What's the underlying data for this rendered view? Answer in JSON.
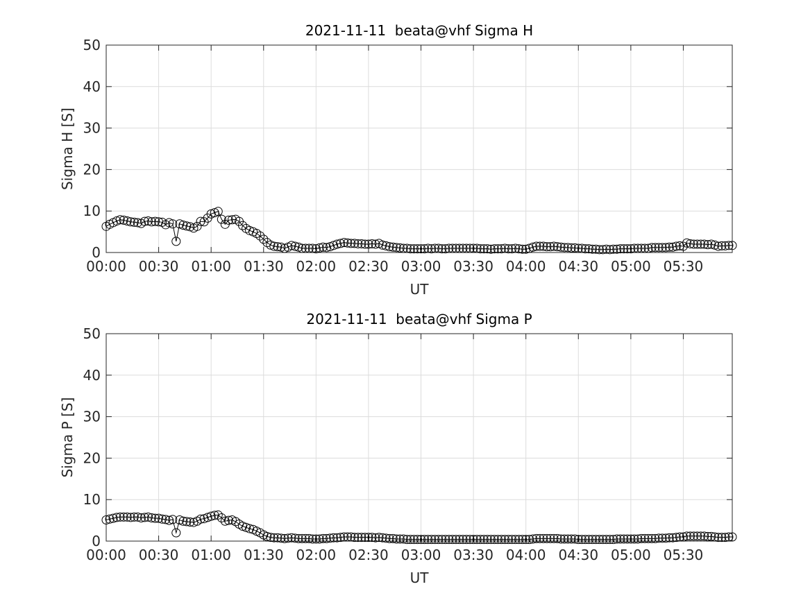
{
  "chart_data": [
    {
      "type": "line",
      "title": "2021-11-11  beata@vhf Sigma H",
      "xlabel": "UT",
      "ylabel": "Sigma H [S]",
      "color": "#000000",
      "grid": true,
      "xlim": [
        "00:00",
        "05:58"
      ],
      "xticks": [
        "00:00",
        "00:30",
        "01:00",
        "01:30",
        "02:00",
        "02:30",
        "03:00",
        "03:30",
        "04:00",
        "04:30",
        "05:00",
        "05:30"
      ],
      "ylim": [
        0,
        50
      ],
      "yticks": [
        0,
        10,
        20,
        30,
        40,
        50
      ],
      "x": [
        "00:00",
        "00:02",
        "00:04",
        "00:06",
        "00:08",
        "00:10",
        "00:12",
        "00:14",
        "00:16",
        "00:18",
        "00:20",
        "00:22",
        "00:24",
        "00:26",
        "00:28",
        "00:30",
        "00:32",
        "00:34",
        "00:36",
        "00:38",
        "00:40",
        "00:42",
        "00:44",
        "00:46",
        "00:48",
        "00:50",
        "00:52",
        "00:54",
        "00:56",
        "00:58",
        "01:00",
        "01:02",
        "01:04",
        "01:06",
        "01:08",
        "01:10",
        "01:12",
        "01:14",
        "01:16",
        "01:18",
        "01:20",
        "01:22",
        "01:24",
        "01:26",
        "01:28",
        "01:30",
        "01:32",
        "01:34",
        "01:36",
        "01:38",
        "01:40",
        "01:42",
        "01:44",
        "01:46",
        "01:48",
        "01:50",
        "01:52",
        "01:54",
        "01:56",
        "01:58",
        "02:00",
        "02:02",
        "02:04",
        "02:06",
        "02:08",
        "02:10",
        "02:12",
        "02:14",
        "02:16",
        "02:18",
        "02:20",
        "02:22",
        "02:24",
        "02:26",
        "02:28",
        "02:30",
        "02:32",
        "02:34",
        "02:36",
        "02:38",
        "02:40",
        "02:42",
        "02:44",
        "02:46",
        "02:48",
        "02:50",
        "02:52",
        "02:54",
        "02:56",
        "02:58",
        "03:00",
        "03:02",
        "03:04",
        "03:06",
        "03:08",
        "03:10",
        "03:12",
        "03:14",
        "03:16",
        "03:18",
        "03:20",
        "03:22",
        "03:24",
        "03:26",
        "03:28",
        "03:30",
        "03:32",
        "03:34",
        "03:36",
        "03:38",
        "03:40",
        "03:42",
        "03:44",
        "03:46",
        "03:48",
        "03:50",
        "03:52",
        "03:54",
        "03:56",
        "03:58",
        "04:00",
        "04:02",
        "04:04",
        "04:06",
        "04:08",
        "04:10",
        "04:12",
        "04:14",
        "04:16",
        "04:18",
        "04:20",
        "04:22",
        "04:24",
        "04:26",
        "04:28",
        "04:30",
        "04:32",
        "04:34",
        "04:36",
        "04:38",
        "04:40",
        "04:42",
        "04:44",
        "04:46",
        "04:48",
        "04:50",
        "04:52",
        "04:54",
        "04:56",
        "04:58",
        "05:00",
        "05:02",
        "05:04",
        "05:06",
        "05:08",
        "05:10",
        "05:12",
        "05:14",
        "05:16",
        "05:18",
        "05:20",
        "05:22",
        "05:24",
        "05:26",
        "05:28",
        "05:30",
        "05:32",
        "05:34",
        "05:36",
        "05:38",
        "05:40",
        "05:42",
        "05:44",
        "05:46",
        "05:48",
        "05:50",
        "05:52",
        "05:54",
        "05:56",
        "05:58"
      ],
      "values": [
        6.3,
        6.8,
        7.2,
        7.6,
        7.9,
        7.8,
        7.6,
        7.4,
        7.3,
        7.2,
        7.0,
        7.5,
        7.6,
        7.4,
        7.5,
        7.4,
        7.3,
        6.7,
        7.2,
        6.9,
        2.7,
        6.9,
        6.6,
        6.4,
        6.2,
        5.9,
        6.3,
        7.5,
        7.4,
        8.3,
        9.3,
        9.6,
        9.9,
        8.0,
        6.8,
        7.8,
        7.9,
        8.0,
        7.5,
        6.5,
        5.8,
        5.3,
        5.0,
        4.6,
        4.0,
        3.2,
        2.4,
        1.8,
        1.5,
        1.4,
        1.3,
        1.0,
        1.3,
        1.7,
        1.5,
        1.3,
        1.0,
        1.0,
        1.0,
        1.0,
        0.9,
        1.1,
        1.3,
        1.2,
        1.4,
        1.7,
        2.0,
        2.2,
        2.4,
        2.3,
        2.2,
        2.2,
        2.1,
        2.1,
        2.0,
        2.0,
        2.1,
        2.0,
        2.2,
        1.8,
        1.6,
        1.4,
        1.3,
        1.2,
        1.1,
        1.0,
        1.0,
        0.9,
        0.9,
        0.9,
        0.9,
        0.9,
        1.0,
        0.9,
        1.0,
        1.0,
        0.9,
        0.9,
        1.0,
        1.0,
        1.0,
        1.0,
        1.0,
        1.0,
        1.0,
        1.0,
        1.0,
        0.9,
        0.9,
        0.9,
        0.8,
        0.9,
        0.9,
        0.9,
        1.0,
        0.9,
        0.9,
        1.0,
        0.9,
        0.8,
        0.8,
        1.0,
        1.3,
        1.5,
        1.5,
        1.5,
        1.4,
        1.4,
        1.5,
        1.4,
        1.3,
        1.2,
        1.2,
        1.1,
        1.1,
        1.0,
        1.0,
        0.9,
        0.9,
        0.8,
        0.8,
        0.7,
        0.7,
        0.8,
        0.7,
        0.8,
        0.8,
        0.9,
        0.9,
        0.9,
        0.9,
        1.0,
        1.0,
        1.0,
        1.0,
        1.0,
        1.2,
        1.2,
        1.2,
        1.2,
        1.2,
        1.3,
        1.3,
        1.5,
        1.6,
        1.5,
        2.3,
        2.1,
        2.0,
        2.0,
        2.0,
        2.0,
        1.9,
        2.0,
        1.8,
        1.5,
        1.6,
        1.6,
        1.7,
        1.7
      ]
    },
    {
      "type": "line",
      "title": "2021-11-11  beata@vhf Sigma P",
      "xlabel": "UT",
      "ylabel": "Sigma P [S]",
      "color": "#000000",
      "grid": true,
      "xlim": [
        "00:00",
        "05:58"
      ],
      "xticks": [
        "00:00",
        "00:30",
        "01:00",
        "01:30",
        "02:00",
        "02:30",
        "03:00",
        "03:30",
        "04:00",
        "04:30",
        "05:00",
        "05:30"
      ],
      "ylim": [
        0,
        50
      ],
      "yticks": [
        0,
        10,
        20,
        30,
        40,
        50
      ],
      "x": [
        "00:00",
        "00:02",
        "00:04",
        "00:06",
        "00:08",
        "00:10",
        "00:12",
        "00:14",
        "00:16",
        "00:18",
        "00:20",
        "00:22",
        "00:24",
        "00:26",
        "00:28",
        "00:30",
        "00:32",
        "00:34",
        "00:36",
        "00:38",
        "00:40",
        "00:42",
        "00:44",
        "00:46",
        "00:48",
        "00:50",
        "00:52",
        "00:54",
        "00:56",
        "00:58",
        "01:00",
        "01:02",
        "01:04",
        "01:06",
        "01:08",
        "01:10",
        "01:12",
        "01:14",
        "01:16",
        "01:18",
        "01:20",
        "01:22",
        "01:24",
        "01:26",
        "01:28",
        "01:30",
        "01:32",
        "01:34",
        "01:36",
        "01:38",
        "01:40",
        "01:42",
        "01:44",
        "01:46",
        "01:48",
        "01:50",
        "01:52",
        "01:54",
        "01:56",
        "01:58",
        "02:00",
        "02:02",
        "02:04",
        "02:06",
        "02:08",
        "02:10",
        "02:12",
        "02:14",
        "02:16",
        "02:18",
        "02:20",
        "02:22",
        "02:24",
        "02:26",
        "02:28",
        "02:30",
        "02:32",
        "02:34",
        "02:36",
        "02:38",
        "02:40",
        "02:42",
        "02:44",
        "02:46",
        "02:48",
        "02:50",
        "02:52",
        "02:54",
        "02:56",
        "02:58",
        "03:00",
        "03:02",
        "03:04",
        "03:06",
        "03:08",
        "03:10",
        "03:12",
        "03:14",
        "03:16",
        "03:18",
        "03:20",
        "03:22",
        "03:24",
        "03:26",
        "03:28",
        "03:30",
        "03:32",
        "03:34",
        "03:36",
        "03:38",
        "03:40",
        "03:42",
        "03:44",
        "03:46",
        "03:48",
        "03:50",
        "03:52",
        "03:54",
        "03:56",
        "03:58",
        "04:00",
        "04:02",
        "04:04",
        "04:06",
        "04:08",
        "04:10",
        "04:12",
        "04:14",
        "04:16",
        "04:18",
        "04:20",
        "04:22",
        "04:24",
        "04:26",
        "04:28",
        "04:30",
        "04:32",
        "04:34",
        "04:36",
        "04:38",
        "04:40",
        "04:42",
        "04:44",
        "04:46",
        "04:48",
        "04:50",
        "04:52",
        "04:54",
        "04:56",
        "04:58",
        "05:00",
        "05:02",
        "05:04",
        "05:06",
        "05:08",
        "05:10",
        "05:12",
        "05:14",
        "05:16",
        "05:18",
        "05:20",
        "05:22",
        "05:24",
        "05:26",
        "05:28",
        "05:30",
        "05:32",
        "05:34",
        "05:36",
        "05:38",
        "05:40",
        "05:42",
        "05:44",
        "05:46",
        "05:48",
        "05:50",
        "05:52",
        "05:54",
        "05:56",
        "05:58"
      ],
      "values": [
        5.1,
        5.3,
        5.5,
        5.7,
        5.8,
        5.8,
        5.8,
        5.7,
        5.8,
        5.8,
        5.6,
        5.7,
        5.8,
        5.6,
        5.5,
        5.5,
        5.3,
        5.2,
        5.0,
        5.2,
        2.0,
        5.1,
        4.8,
        4.7,
        4.6,
        4.5,
        4.8,
        5.3,
        5.4,
        5.7,
        6.0,
        6.2,
        6.3,
        5.6,
        4.8,
        5.0,
        5.1,
        4.7,
        4.1,
        3.6,
        3.3,
        3.0,
        2.8,
        2.4,
        2.0,
        1.5,
        1.1,
        0.9,
        0.8,
        0.8,
        0.7,
        0.6,
        0.7,
        0.8,
        0.7,
        0.6,
        0.6,
        0.6,
        0.6,
        0.5,
        0.5,
        0.5,
        0.6,
        0.6,
        0.7,
        0.8,
        0.8,
        0.9,
        1.0,
        1.0,
        1.0,
        0.9,
        0.9,
        0.9,
        0.9,
        0.9,
        0.9,
        0.8,
        0.9,
        0.8,
        0.7,
        0.6,
        0.6,
        0.5,
        0.5,
        0.5,
        0.4,
        0.4,
        0.4,
        0.4,
        0.4,
        0.4,
        0.4,
        0.4,
        0.4,
        0.4,
        0.4,
        0.4,
        0.4,
        0.4,
        0.4,
        0.4,
        0.4,
        0.4,
        0.4,
        0.4,
        0.4,
        0.4,
        0.4,
        0.4,
        0.4,
        0.4,
        0.4,
        0.4,
        0.4,
        0.4,
        0.4,
        0.4,
        0.4,
        0.4,
        0.4,
        0.4,
        0.5,
        0.6,
        0.6,
        0.6,
        0.6,
        0.6,
        0.6,
        0.6,
        0.5,
        0.5,
        0.5,
        0.5,
        0.5,
        0.4,
        0.4,
        0.4,
        0.4,
        0.4,
        0.4,
        0.4,
        0.4,
        0.4,
        0.4,
        0.4,
        0.5,
        0.5,
        0.5,
        0.5,
        0.5,
        0.5,
        0.5,
        0.6,
        0.6,
        0.6,
        0.6,
        0.6,
        0.7,
        0.7,
        0.7,
        0.8,
        0.8,
        0.9,
        1.0,
        1.0,
        1.2,
        1.2,
        1.2,
        1.2,
        1.2,
        1.2,
        1.1,
        1.1,
        1.0,
        0.9,
        0.9,
        0.9,
        1.0,
        1.0
      ]
    }
  ]
}
